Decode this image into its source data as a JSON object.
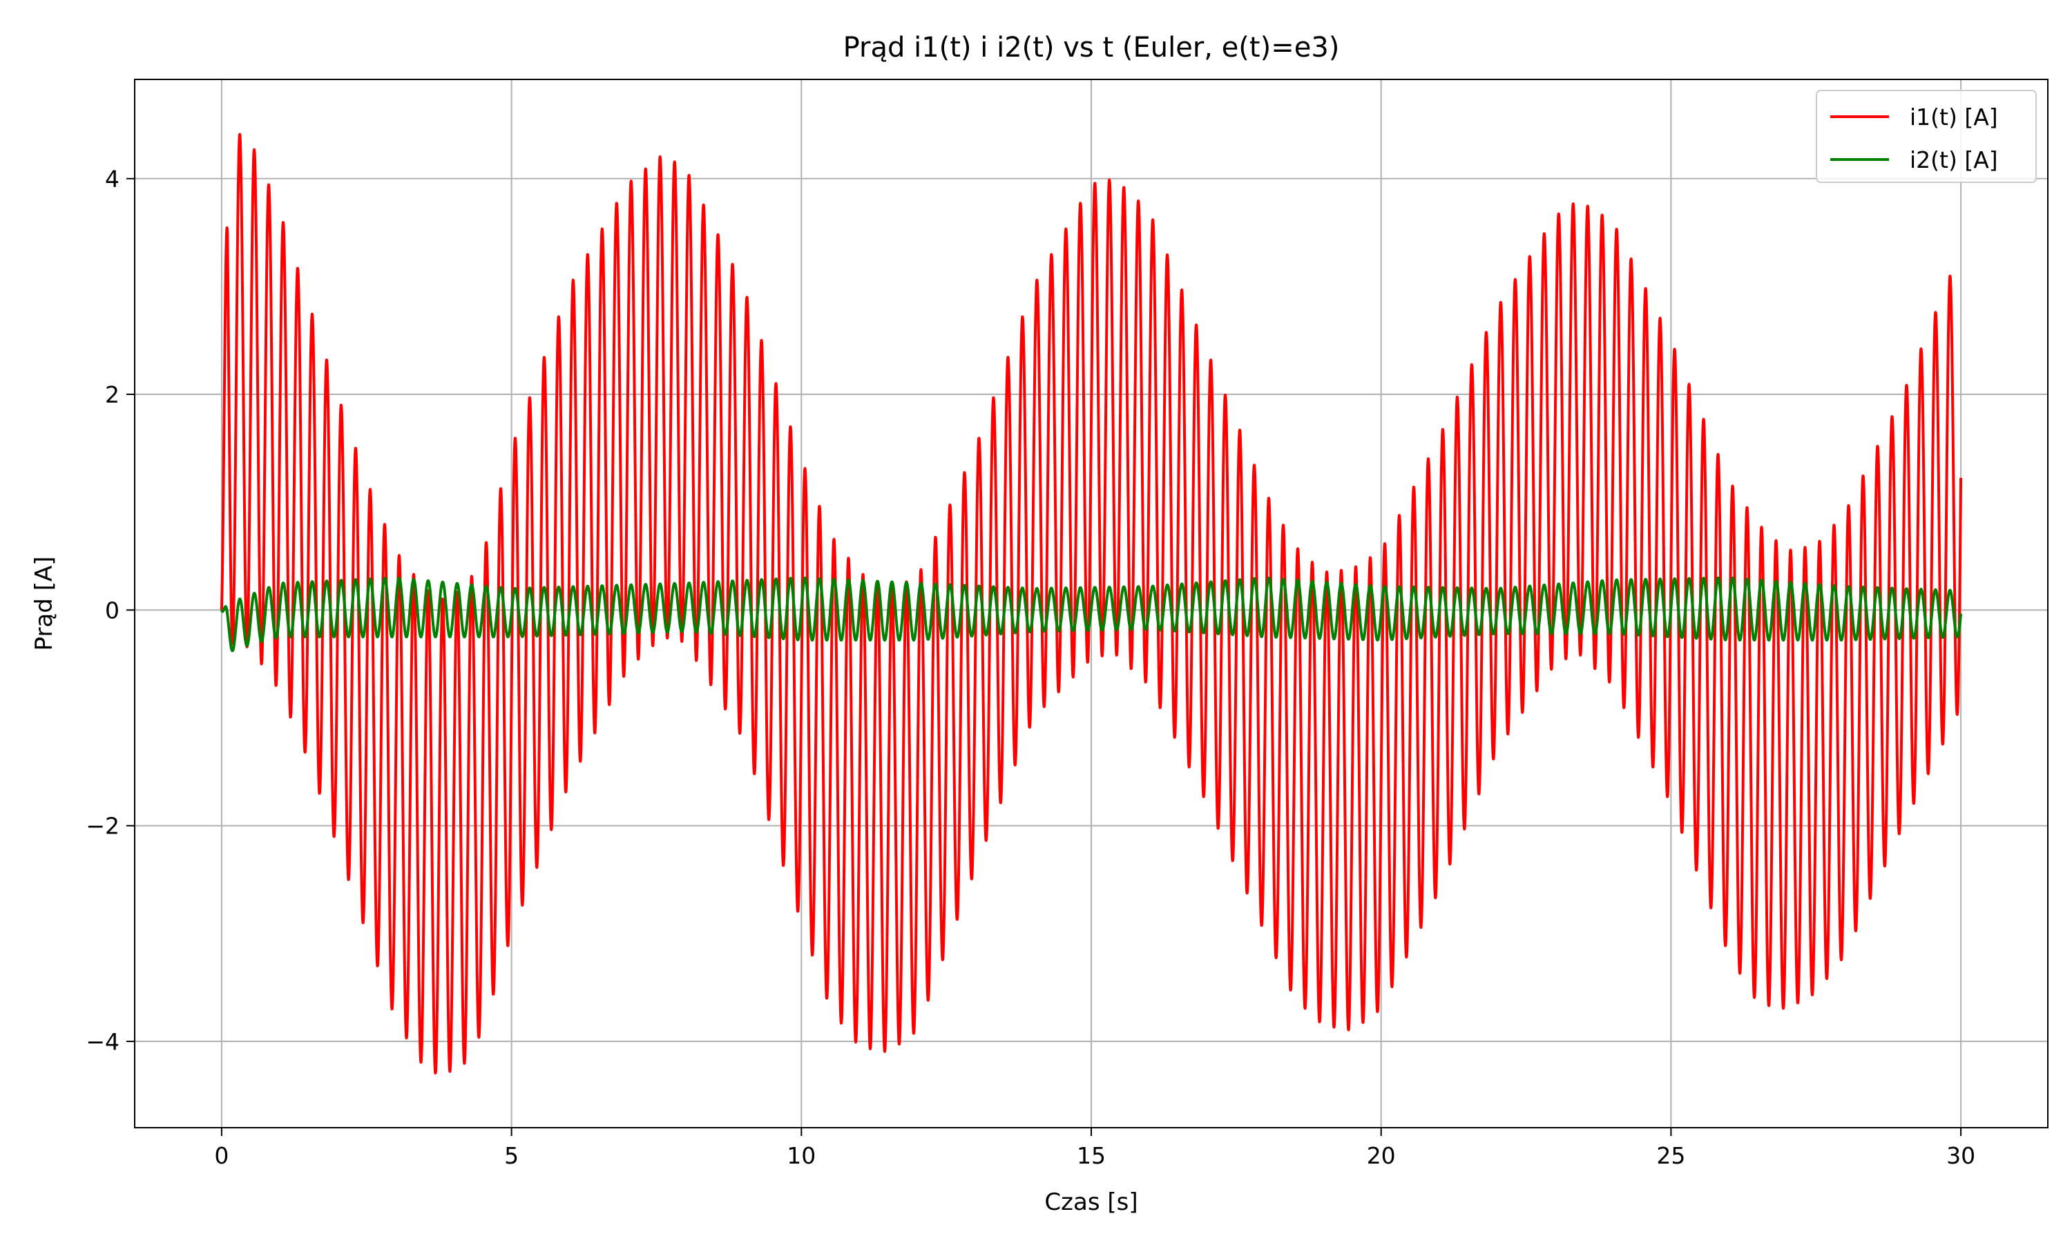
{
  "chart_data": {
    "type": "line",
    "title": "Prąd i1(t) i i2(t) vs t (Euler, e(t)=e3)",
    "xlabel": "Czas [s]",
    "ylabel": "Prąd [A]",
    "xlim": [
      -1.5,
      31.5
    ],
    "ylim": [
      -4.8,
      4.92
    ],
    "xticks": [
      0,
      5,
      10,
      15,
      20,
      25,
      30
    ],
    "xtick_labels": [
      "0",
      "5",
      "10",
      "15",
      "20",
      "25",
      "30"
    ],
    "yticks": [
      -4,
      -2,
      0,
      2,
      4
    ],
    "ytick_labels": [
      "−4",
      "−2",
      "0",
      "2",
      "4"
    ],
    "grid": true,
    "legend_position": "top-right",
    "carrier_frequency_hz": 4.0,
    "series": [
      {
        "name": "i1(t) [A]",
        "color": "#ff0000",
        "envelope": {
          "t": [
            0.0,
            0.1,
            0.5,
            1.0,
            1.5,
            2.0,
            2.5,
            3.0,
            3.5,
            3.8,
            4.2,
            4.5,
            5.0,
            6.0,
            7.0,
            7.6,
            8.0,
            9.0,
            10.0,
            10.5,
            11.0,
            11.5,
            12.0,
            13.0,
            14.0,
            15.0,
            15.4,
            16.0,
            17.0,
            18.0,
            18.5,
            19.0,
            19.5,
            20.0,
            21.0,
            22.0,
            23.0,
            23.4,
            24.0,
            25.0,
            26.0,
            26.5,
            27.0,
            27.5,
            28.0,
            29.0,
            30.0
          ],
          "upper": [
            0.0,
            4.48,
            4.35,
            3.7,
            2.85,
            2.0,
            1.2,
            0.55,
            0.2,
            0.1,
            0.2,
            0.5,
            1.5,
            3.0,
            3.95,
            4.22,
            4.1,
            3.0,
            1.4,
            0.7,
            0.35,
            0.2,
            0.3,
            1.5,
            3.0,
            3.95,
            4.0,
            3.7,
            2.4,
            1.1,
            0.6,
            0.35,
            0.38,
            0.55,
            1.6,
            2.8,
            3.65,
            3.8,
            3.6,
            2.5,
            1.2,
            0.8,
            0.55,
            0.6,
            0.9,
            2.0,
            3.35
          ],
          "lower": [
            0.0,
            -0.3,
            -0.35,
            -0.75,
            -1.4,
            -2.2,
            -3.0,
            -3.8,
            -4.25,
            -4.32,
            -4.2,
            -3.9,
            -3.0,
            -1.6,
            -0.55,
            -0.25,
            -0.3,
            -1.2,
            -2.9,
            -3.7,
            -4.05,
            -4.1,
            -3.9,
            -2.4,
            -1.0,
            -0.45,
            -0.4,
            -0.7,
            -1.8,
            -3.0,
            -3.6,
            -3.85,
            -3.9,
            -3.7,
            -2.6,
            -1.3,
            -0.5,
            -0.4,
            -0.7,
            -1.8,
            -3.2,
            -3.65,
            -3.7,
            -3.55,
            -3.2,
            -2.0,
            -0.9
          ]
        }
      },
      {
        "name": "i2(t) [A]",
        "color": "#008000",
        "envelope": {
          "t": [
            0.0,
            0.1,
            0.3,
            1.0,
            3.0,
            5.0,
            8.0,
            10.0,
            12.0,
            14.0,
            16.0,
            18.0,
            20.0,
            22.0,
            24.0,
            26.0,
            28.0,
            30.0
          ],
          "upper": [
            0.0,
            0.05,
            0.1,
            0.25,
            0.3,
            0.2,
            0.25,
            0.3,
            0.25,
            0.2,
            0.22,
            0.3,
            0.22,
            0.2,
            0.28,
            0.3,
            0.22,
            0.18
          ],
          "lower": [
            0.0,
            -0.4,
            -0.35,
            -0.25,
            -0.25,
            -0.25,
            -0.2,
            -0.28,
            -0.28,
            -0.2,
            -0.18,
            -0.25,
            -0.28,
            -0.22,
            -0.22,
            -0.28,
            -0.28,
            -0.25
          ]
        }
      }
    ]
  }
}
